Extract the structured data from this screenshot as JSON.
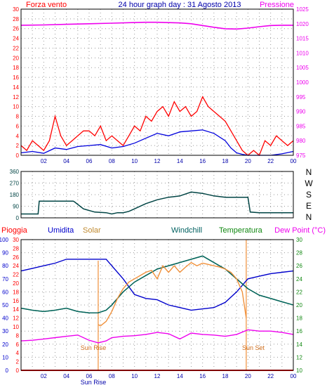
{
  "colors": {
    "frame": "#000000",
    "grid": "#9a9a9a",
    "wind_gust": "#ff0000",
    "wind_avg": "#0000dd",
    "pressure": "#ee00ee",
    "direction": "#004444",
    "humidity": "#0000cc",
    "solar": "#f0903a",
    "windchill": "#006060",
    "temperature": "#118811",
    "dewpoint": "#ee00ee",
    "rain": "#ff0000",
    "sun_marker": "#f0903a",
    "title": "#0000aa"
  },
  "header": {
    "left_label": "Forza vento",
    "title": "24 hour graph day : 31 Agosto 2013",
    "right_label": "Pressione"
  },
  "bottom_header": {
    "pioggia": "Pioggia",
    "umidita": "Umidita",
    "solar": "Solar",
    "windchill": "Windchill",
    "temperatura": "Temperatura",
    "dewpoint": "Dew Point (°C)"
  },
  "compass": [
    "N",
    "W",
    "S",
    "E",
    "N"
  ],
  "x_ticks": [
    "02",
    "04",
    "06",
    "08",
    "10",
    "12",
    "14",
    "16",
    "18",
    "20",
    "22",
    "00"
  ],
  "sun": {
    "rise_label": "Sun Rise",
    "set_label": "Sun Set",
    "rise_axis_label": "Sun Rise",
    "rise_time": 6.8,
    "set_time": 19.85
  },
  "chart_data": [
    {
      "type": "line",
      "title": "24 hour graph day : 31 Agosto 2013",
      "x_range": [
        0,
        24
      ],
      "y_left": {
        "label": "Forza vento",
        "ylim": [
          0,
          30
        ],
        "ticks": [
          "0",
          "2",
          "4",
          "6",
          "8",
          "10",
          "12",
          "14",
          "16",
          "18",
          "20",
          "22",
          "24",
          "26",
          "28",
          "30"
        ]
      },
      "y_right": {
        "label": "Pressione",
        "ylim": [
          975,
          1025
        ],
        "ticks": [
          "975",
          "980",
          "985",
          "990",
          "995",
          "1000",
          "1005",
          "1010",
          "1015",
          "1020",
          "1025"
        ]
      },
      "series": [
        {
          "key": "pressure",
          "axis": "right",
          "x": [
            0,
            2,
            4,
            6,
            8,
            10,
            11,
            12,
            14,
            15,
            16,
            17,
            18,
            19,
            20,
            21,
            22,
            23,
            24
          ],
          "values": [
            1019.5,
            1019.6,
            1019.8,
            1020.0,
            1020.2,
            1020.4,
            1020.5,
            1020.5,
            1020.3,
            1020.0,
            1019.4,
            1018.8,
            1018.3,
            1018.2,
            1018.5,
            1019.0,
            1019.4,
            1019.5,
            1019.5
          ]
        },
        {
          "key": "wind_gust",
          "axis": "left",
          "x": [
            0,
            0.5,
            1,
            1.5,
            2,
            2.5,
            3,
            3.5,
            4,
            4.5,
            5,
            5.5,
            6,
            6.5,
            7,
            7.5,
            8,
            8.5,
            9,
            9.5,
            10,
            10.5,
            11,
            11.5,
            12,
            12.5,
            13,
            13.5,
            14,
            14.5,
            15,
            15.5,
            16,
            16.5,
            17,
            17.5,
            18,
            18.5,
            19,
            19.5,
            20,
            20.5,
            21,
            21.5,
            22,
            22.5,
            23,
            23.5,
            24
          ],
          "values": [
            2,
            1,
            3,
            2,
            1,
            3,
            8,
            4,
            2,
            3,
            4,
            5,
            5,
            4,
            6,
            3,
            4,
            3,
            2,
            4,
            6,
            5,
            8,
            7,
            9,
            10,
            8,
            11,
            9,
            10,
            8,
            9,
            12,
            10,
            9,
            8,
            7,
            5,
            3,
            1,
            0,
            1,
            0,
            3,
            2,
            4,
            3,
            2,
            3
          ]
        },
        {
          "key": "wind_avg",
          "axis": "left",
          "x": [
            0,
            1,
            2,
            3,
            4,
            5,
            6,
            7,
            8,
            9,
            10,
            11,
            12,
            13,
            14,
            15,
            16,
            17,
            18,
            18.5,
            19,
            19.5,
            20,
            21,
            22,
            23,
            24
          ],
          "values": [
            0.5,
            0.8,
            0.4,
            1.5,
            1.2,
            1.8,
            2.0,
            2.2,
            1.5,
            1.8,
            2.5,
            3.5,
            4.5,
            4.0,
            4.8,
            5.0,
            5.2,
            4.5,
            3.0,
            1.5,
            0.5,
            0.2,
            0,
            0,
            0,
            0.3,
            0.8
          ]
        }
      ]
    },
    {
      "type": "line",
      "x_range": [
        0,
        24
      ],
      "y_left": {
        "ylim": [
          0,
          360
        ],
        "ticks": [
          "0",
          "90",
          "180",
          "270",
          "360"
        ]
      },
      "series": [
        {
          "key": "direction",
          "x": [
            0,
            1.5,
            1.6,
            4.6,
            4.7,
            5.5,
            6.5,
            7.5,
            8.0,
            8.5,
            9.0,
            9.5,
            10,
            11,
            12,
            13,
            14,
            15,
            16,
            17,
            18,
            19,
            20,
            20.2,
            21,
            22,
            23,
            24
          ],
          "values": [
            30,
            30,
            130,
            130,
            125,
            70,
            45,
            40,
            30,
            40,
            40,
            50,
            70,
            110,
            140,
            160,
            170,
            200,
            190,
            170,
            160,
            160,
            160,
            45,
            40,
            40,
            40,
            40
          ]
        }
      ]
    },
    {
      "type": "line",
      "x_range": [
        0,
        24
      ],
      "y_left": {
        "label": "Umidita",
        "ylim": [
          0,
          100
        ],
        "ticks": [
          "0",
          "10",
          "20",
          "30",
          "40",
          "50",
          "60",
          "70",
          "80",
          "90",
          "100"
        ]
      },
      "y_left2": {
        "label": "Pioggia",
        "ylim": [
          0,
          30
        ],
        "ticks": [
          "0",
          "2",
          "4",
          "6",
          "8",
          "10",
          "12",
          "14",
          "16",
          "18",
          "20",
          "22",
          "24",
          "26",
          "28",
          "30"
        ]
      },
      "y_right": {
        "label": "Temperatura",
        "ylim": [
          10,
          30
        ],
        "ticks": [
          "10",
          "12",
          "14",
          "16",
          "18",
          "20",
          "22",
          "24",
          "26",
          "28",
          "30"
        ]
      },
      "series": [
        {
          "key": "humidity",
          "axis": "left",
          "x": [
            0,
            1,
            2,
            3,
            4,
            5,
            6,
            6.8,
            7.5,
            8,
            9,
            10,
            11,
            12,
            13,
            14,
            15,
            16,
            17,
            18,
            19,
            20,
            21,
            22,
            23,
            24
          ],
          "values": [
            76,
            78,
            80,
            82,
            85,
            85,
            85,
            85,
            85,
            80,
            70,
            58,
            55,
            54,
            50,
            48,
            46,
            47,
            48,
            52,
            60,
            70,
            72,
            74,
            75,
            76
          ]
        },
        {
          "key": "dewpoint",
          "axis": "right",
          "x": [
            0,
            1,
            2,
            3,
            4,
            5,
            6,
            6.8,
            7.5,
            8,
            9,
            10,
            11,
            12,
            13,
            14,
            15,
            16,
            17,
            18,
            19,
            20,
            21,
            22,
            23,
            24
          ],
          "values": [
            14.5,
            14.6,
            14.8,
            15,
            15.2,
            15.4,
            14.6,
            14.2,
            14.5,
            15,
            15.2,
            15.3,
            15.5,
            15.8,
            15.6,
            14.8,
            15.7,
            15.5,
            15.4,
            15.2,
            15.5,
            16.2,
            16.0,
            16.0,
            15.8,
            15.5
          ]
        },
        {
          "key": "temperature",
          "axis": "right",
          "x": [
            0,
            1,
            2,
            3,
            4,
            5,
            6,
            6.8,
            7.5,
            8,
            9,
            10,
            11,
            12,
            13,
            14,
            15,
            16,
            17,
            18,
            19,
            20,
            21,
            22,
            23,
            24
          ],
          "values": [
            19.5,
            19.2,
            19.0,
            19.2,
            19.5,
            19.0,
            18.8,
            18.8,
            19.2,
            20,
            22,
            23.5,
            24.5,
            25.5,
            26,
            26.5,
            27,
            27.5,
            26.5,
            25.5,
            24,
            22.5,
            21.5,
            21,
            20.5,
            20
          ]
        },
        {
          "key": "windchill",
          "axis": "right",
          "x": [
            0,
            1,
            2,
            3,
            4,
            5,
            6,
            6.8,
            7.5,
            8,
            9,
            10,
            11,
            12,
            13,
            14,
            15,
            16,
            17,
            18,
            19,
            20,
            21,
            22,
            23,
            24
          ],
          "values": [
            19.5,
            19.2,
            19.0,
            19.2,
            19.5,
            19.0,
            18.8,
            18.8,
            19.2,
            20,
            22,
            23.5,
            24.5,
            25.5,
            26,
            26.5,
            27,
            27.5,
            26.5,
            25.5,
            24,
            22.5,
            21.5,
            21,
            20.5,
            20
          ]
        },
        {
          "key": "solar",
          "axis": "right",
          "x": [
            6.8,
            7.0,
            7.5,
            8,
            8.5,
            9,
            9.5,
            10,
            10.5,
            11,
            11.5,
            12,
            12.5,
            13,
            13.5,
            14,
            14.5,
            15,
            15.5,
            16,
            16.5,
            17,
            17.5,
            18,
            18.5,
            19,
            19.5,
            19.85
          ],
          "values": [
            17,
            16.8,
            17.5,
            19,
            21,
            22.5,
            23.5,
            24,
            24.5,
            25,
            25.3,
            24,
            26,
            25,
            26,
            25,
            25.8,
            26.5,
            26,
            26.4,
            26.2,
            26.0,
            25.8,
            25.5,
            25,
            24,
            22,
            18
          ]
        },
        {
          "key": "rain",
          "axis": "left2",
          "x": [
            0,
            24
          ],
          "values": [
            0,
            0
          ]
        }
      ]
    }
  ]
}
